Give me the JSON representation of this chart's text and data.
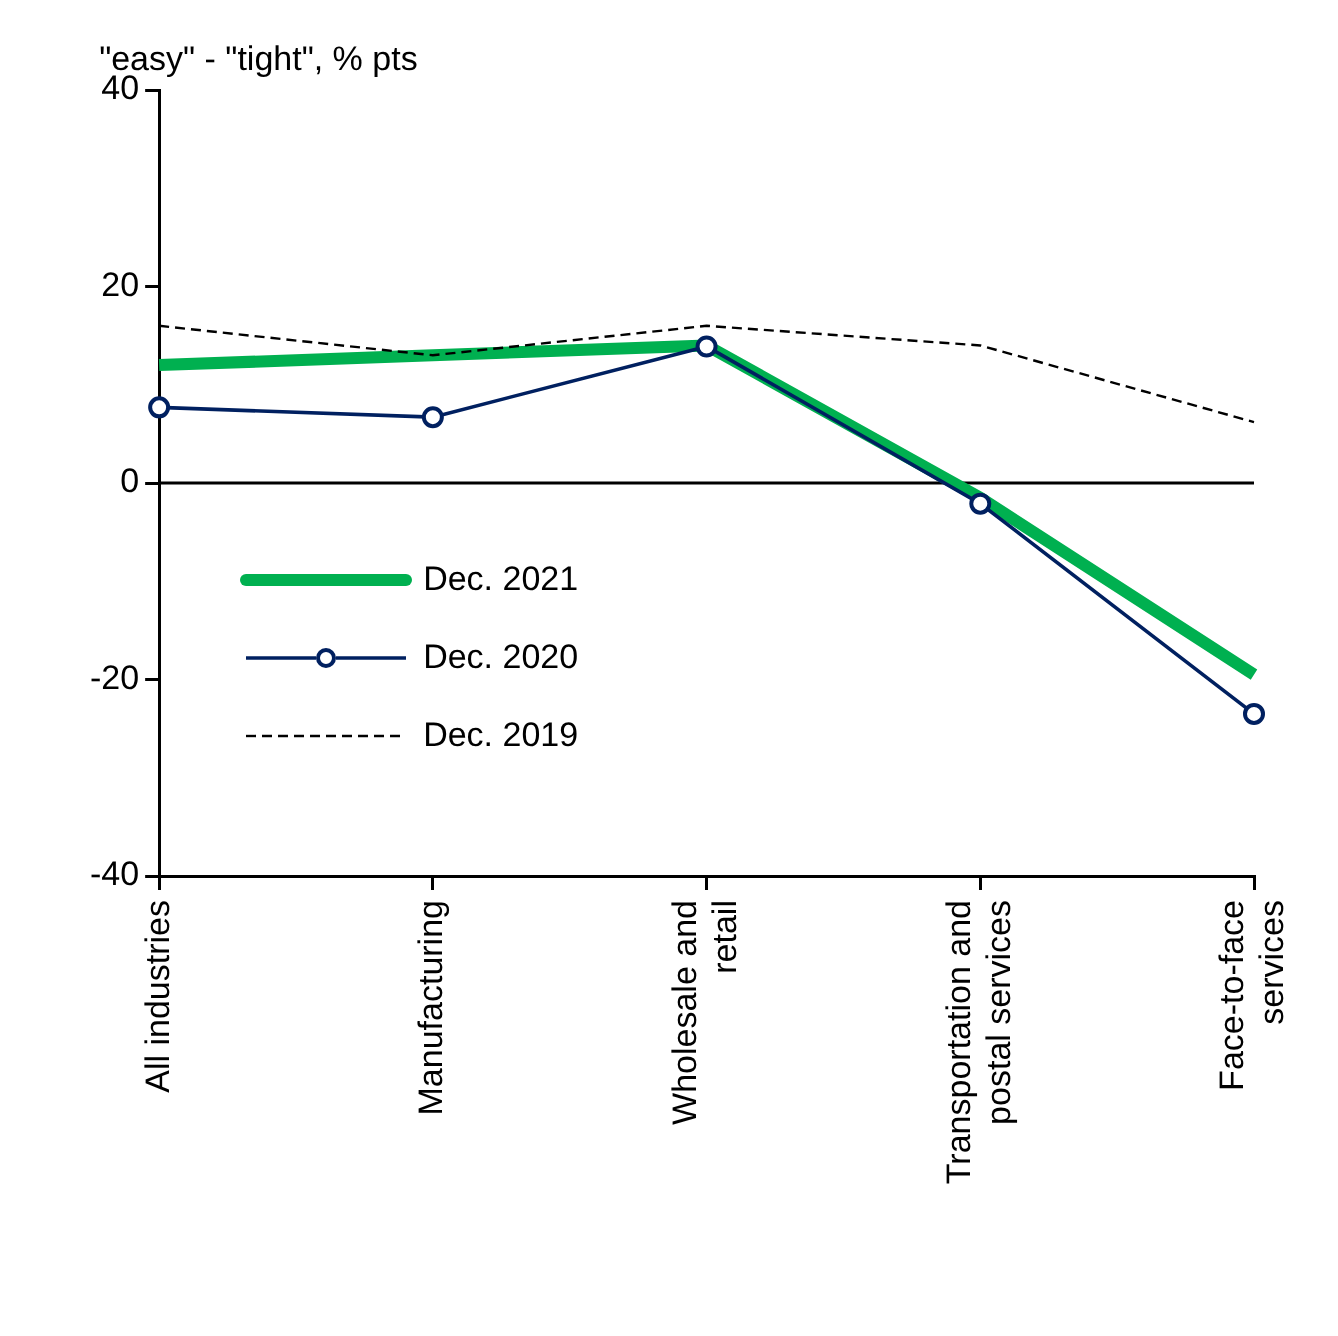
{
  "chart_data": {
    "type": "line",
    "ylabel": "\"easy\" - \"tight\", % pts",
    "categories": [
      "All industries",
      "Manufacturing",
      "Wholesale and retail",
      "Transportation and postal services",
      "Face-to-face services"
    ],
    "series": [
      {
        "name": "Dec. 2021",
        "color": "#00b050",
        "values": [
          12,
          13,
          14,
          -1.5,
          -19.5
        ]
      },
      {
        "name": "Dec. 2020",
        "color": "#002060",
        "marker": "circle",
        "values": [
          7.7,
          6.7,
          13.9,
          -2.1,
          -23.5
        ]
      },
      {
        "name": "Dec. 2019",
        "color": "#000000",
        "line_style": "dashed",
        "values": [
          16,
          13,
          16,
          14,
          6.2
        ]
      }
    ],
    "ylim": [
      -40,
      40
    ],
    "yticks": [
      -40,
      -20,
      0,
      20,
      40
    ],
    "ref_lines": [
      {
        "axis": "y",
        "value": 0,
        "color": "#000000"
      }
    ],
    "grid": false,
    "legend": "left"
  }
}
